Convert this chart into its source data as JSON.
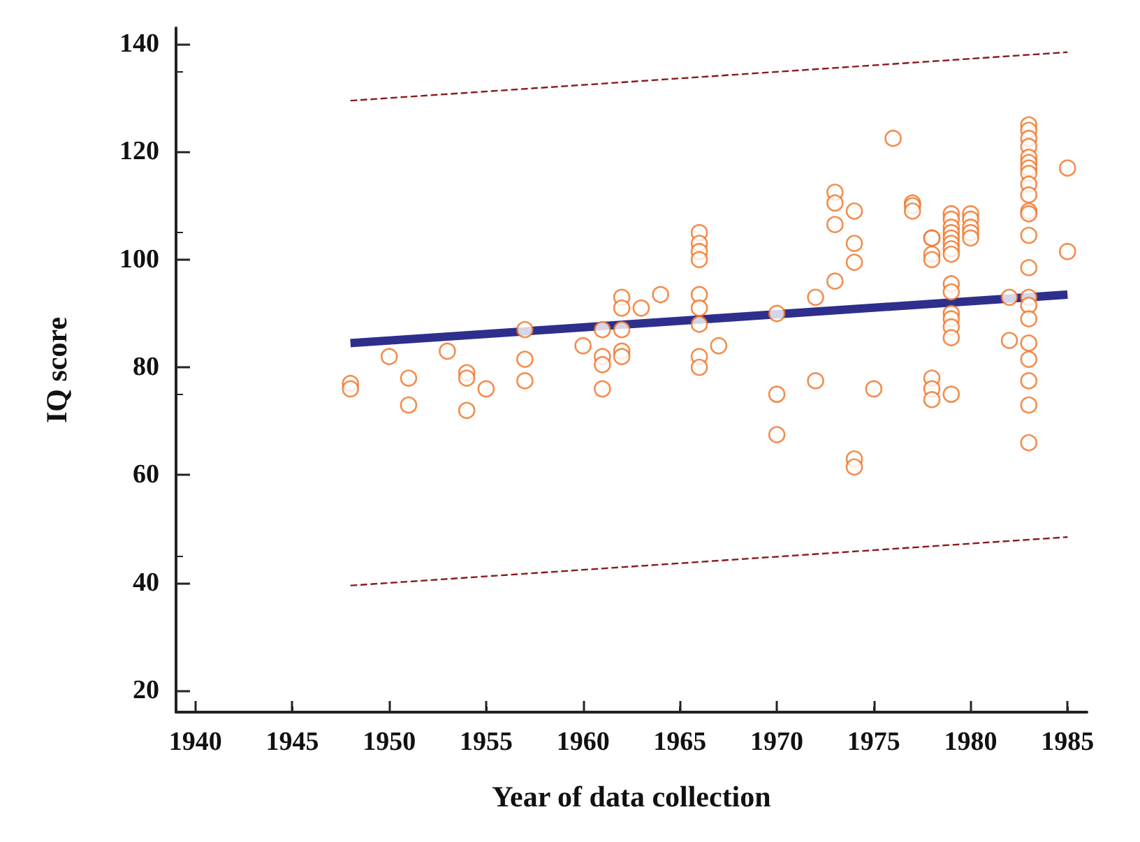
{
  "chart_data": {
    "type": "scatter",
    "xlabel": "Year of data collection",
    "ylabel": "IQ score",
    "xlim": [
      1939,
      1986
    ],
    "xticks": [
      1940,
      1945,
      1950,
      1955,
      1960,
      1965,
      1970,
      1975,
      1980,
      1985
    ],
    "ylim": [
      16,
      143
    ],
    "yticks": [
      20,
      40,
      60,
      80,
      100,
      120,
      140
    ],
    "grid": false,
    "series": [
      {
        "color": "#f07020",
        "marker": "circle",
        "x": [
          1948,
          1948,
          1950,
          1951,
          1951,
          1953,
          1954,
          1954,
          1954,
          1955,
          1957,
          1957,
          1957,
          1960,
          1961,
          1961,
          1961,
          1961,
          1962,
          1962,
          1962,
          1962,
          1962,
          1963,
          1964,
          1966,
          1966,
          1966,
          1966,
          1966,
          1966,
          1966,
          1966,
          1966,
          1967,
          1970,
          1970,
          1970,
          1972,
          1972,
          1973,
          1973,
          1973,
          1974,
          1974,
          1974,
          1973,
          1975,
          1974,
          1974,
          1976,
          1977,
          1977,
          1977,
          1978,
          1978,
          1978,
          1978,
          1978,
          1978,
          1978,
          1979,
          1979,
          1979,
          1979,
          1979,
          1979,
          1979,
          1979,
          1979,
          1979,
          1979,
          1979,
          1979,
          1979,
          1979,
          1980,
          1980,
          1980,
          1980,
          1980,
          1982,
          1982,
          1983,
          1983,
          1983,
          1983,
          1983,
          1983,
          1983,
          1983,
          1983,
          1983,
          1983,
          1983,
          1983,
          1983,
          1983,
          1983,
          1983,
          1983,
          1983,
          1983,
          1983,
          1983,
          1985,
          1985
        ],
        "values": [
          77,
          76,
          82,
          78,
          73,
          83,
          79,
          78,
          72,
          76,
          87,
          81.5,
          77.5,
          84,
          82,
          80.5,
          76,
          87,
          93,
          91,
          87,
          83,
          82,
          91,
          93.5,
          105,
          103,
          101.5,
          100,
          93.5,
          91,
          88,
          82,
          80,
          84,
          90,
          75,
          67.5,
          93,
          77.5,
          112.5,
          110.5,
          106.5,
          109,
          103,
          99.5,
          96,
          76,
          63,
          61.5,
          122.5,
          110.5,
          110,
          109,
          104,
          104,
          101,
          100,
          78,
          76,
          74,
          108.5,
          107.5,
          106,
          105,
          104,
          103,
          102,
          101,
          95.5,
          94,
          90,
          89,
          87.5,
          85.5,
          75,
          108.5,
          107.5,
          106,
          105,
          104,
          93,
          85,
          125,
          124,
          122.5,
          121,
          119,
          118,
          117,
          116,
          114,
          112,
          109,
          108.5,
          104.5,
          98.5,
          93,
          91.5,
          89,
          84.5,
          81.5,
          77.5,
          73,
          66,
          117,
          101.5
        ]
      },
      {
        "type": "line",
        "color": "#2e2e8c",
        "marker": "none",
        "line_style": "solid",
        "x": [
          1948,
          1985
        ],
        "values": [
          84.5,
          93.5
        ]
      },
      {
        "type": "line",
        "color": "#8b1a1a",
        "marker": "none",
        "line_style": "dashed",
        "x": [
          1948,
          1985
        ],
        "values": [
          129.5,
          138.5
        ]
      },
      {
        "type": "line",
        "color": "#8b1a1a",
        "marker": "none",
        "line_style": "dashed",
        "x": [
          1948,
          1985
        ],
        "values": [
          39.5,
          48.5
        ]
      }
    ]
  }
}
